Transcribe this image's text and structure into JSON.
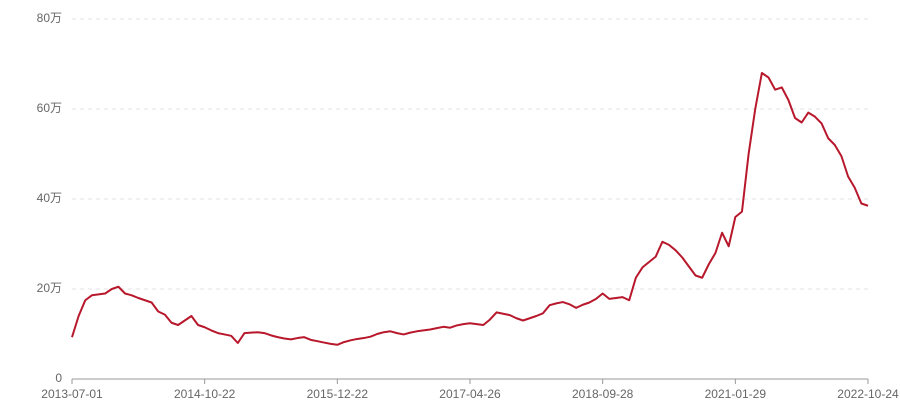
{
  "chart_data": {
    "type": "line",
    "categories": [
      "2013-07-01",
      null,
      null,
      null,
      null,
      null,
      null,
      null,
      null,
      null,
      null,
      null,
      null,
      null,
      null,
      null,
      null,
      null,
      null,
      null,
      "2014-10-22",
      null,
      null,
      null,
      null,
      null,
      null,
      null,
      null,
      null,
      null,
      null,
      null,
      null,
      null,
      null,
      null,
      null,
      null,
      null,
      "2015-12-22",
      null,
      null,
      null,
      null,
      null,
      null,
      null,
      null,
      null,
      null,
      null,
      null,
      null,
      null,
      null,
      null,
      null,
      null,
      null,
      "2017-04-26",
      null,
      null,
      null,
      null,
      null,
      null,
      null,
      null,
      null,
      null,
      null,
      null,
      null,
      null,
      null,
      null,
      null,
      null,
      null,
      "2018-09-28",
      null,
      null,
      null,
      null,
      null,
      null,
      null,
      null,
      null,
      null,
      null,
      null,
      null,
      null,
      null,
      null,
      null,
      null,
      null,
      "2021-01-29",
      null,
      null,
      null,
      null,
      null,
      null,
      null,
      null,
      null,
      null,
      null,
      null,
      null,
      null,
      null,
      null,
      null,
      null,
      null,
      "2022-10-24"
    ],
    "values": [
      9.3,
      14,
      17.5,
      18.6,
      18.8,
      19,
      20,
      20.5,
      19,
      18.6,
      18,
      17.5,
      17,
      15,
      14.3,
      12.5,
      12,
      13,
      14,
      12,
      11.5,
      10.8,
      10.2,
      9.9,
      9.6,
      8,
      10.2,
      10.3,
      10.4,
      10.2,
      9.7,
      9.3,
      9,
      8.8,
      9.1,
      9.3,
      8.7,
      8.4,
      8.1,
      7.8,
      7.6,
      8.2,
      8.6,
      8.9,
      9.1,
      9.4,
      10,
      10.4,
      10.6,
      10.2,
      9.9,
      10.3,
      10.6,
      10.8,
      11,
      11.3,
      11.6,
      11.4,
      11.9,
      12.2,
      12.4,
      12.2,
      12,
      13.2,
      14.8,
      14.5,
      14.2,
      13.5,
      13,
      13.5,
      14,
      14.6,
      16.4,
      16.8,
      17.1,
      16.6,
      15.8,
      16.5,
      17,
      17.8,
      19,
      17.8,
      18,
      18.2,
      17.5,
      22.5,
      24.8,
      26,
      27.2,
      30.5,
      29.8,
      28.6,
      27,
      25,
      23,
      22.5,
      25.5,
      28,
      32.5,
      29.5,
      36,
      37.2,
      50,
      60,
      68,
      67,
      64.3,
      64.8,
      62,
      58,
      57,
      59.2,
      58.3,
      56.8,
      53.5,
      52,
      49.5,
      45,
      42.5,
      39,
      38.5
    ],
    "color": "#b8182c",
    "ylim": [
      0,
      80
    ],
    "yticks": [
      0,
      {
        "value": 20,
        "label": "20万"
      },
      {
        "value": 40,
        "label": "40万"
      },
      {
        "value": 60,
        "label": "60万"
      },
      {
        "value": 80,
        "label": "80万"
      }
    ],
    "grid": true
  }
}
